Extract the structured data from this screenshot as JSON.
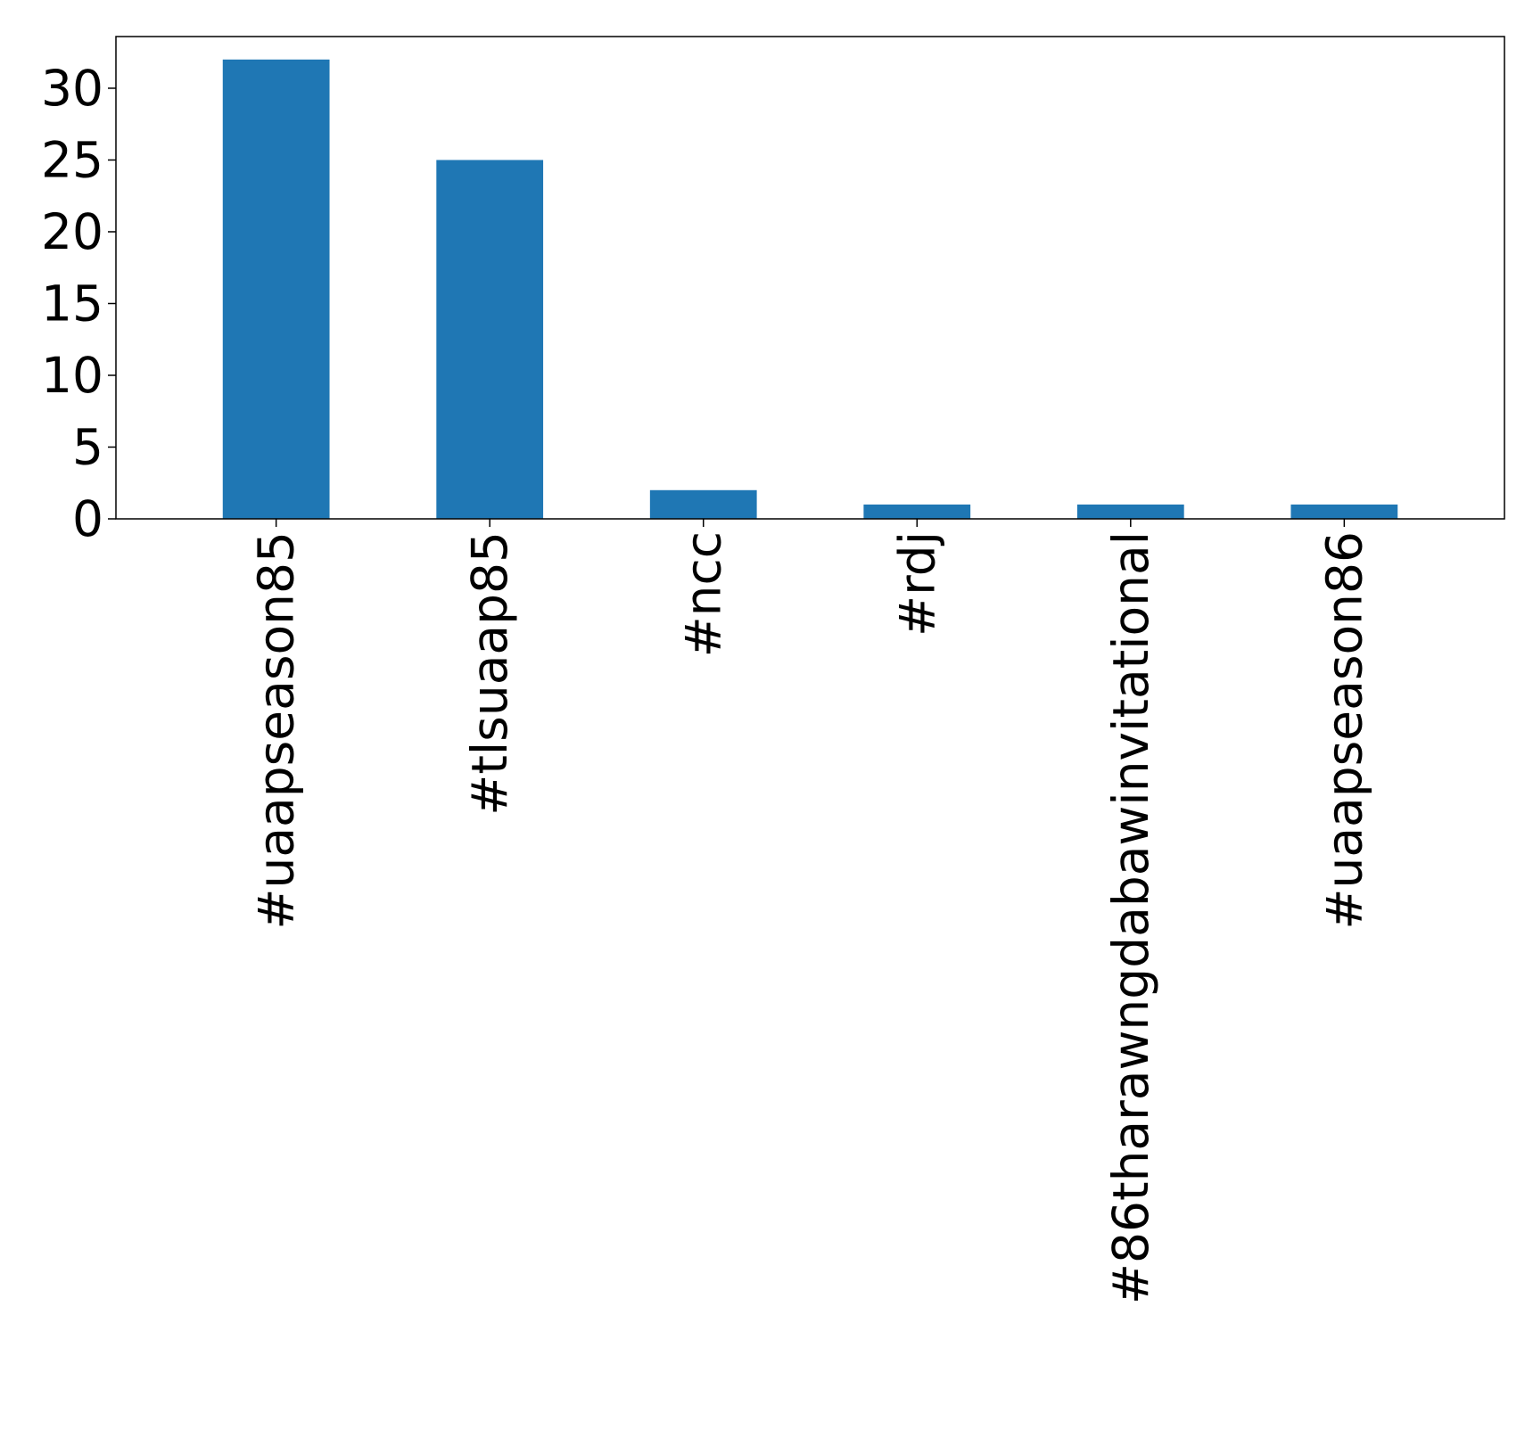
{
  "chart_data": {
    "type": "bar",
    "categories": [
      "#uaapseason85",
      "#tlsuaap85",
      "#ncc",
      "#rdj",
      "#86tharawngdabawinvitational",
      "#uaapseason86"
    ],
    "values": [
      32,
      25,
      2,
      1,
      1,
      1
    ],
    "title": "",
    "xlabel": "",
    "ylabel": "",
    "ylim": [
      0,
      33.6
    ],
    "yticks": [
      0,
      5,
      10,
      15,
      20,
      25,
      30
    ],
    "grid": false,
    "bar_color": "#1f77b4"
  }
}
